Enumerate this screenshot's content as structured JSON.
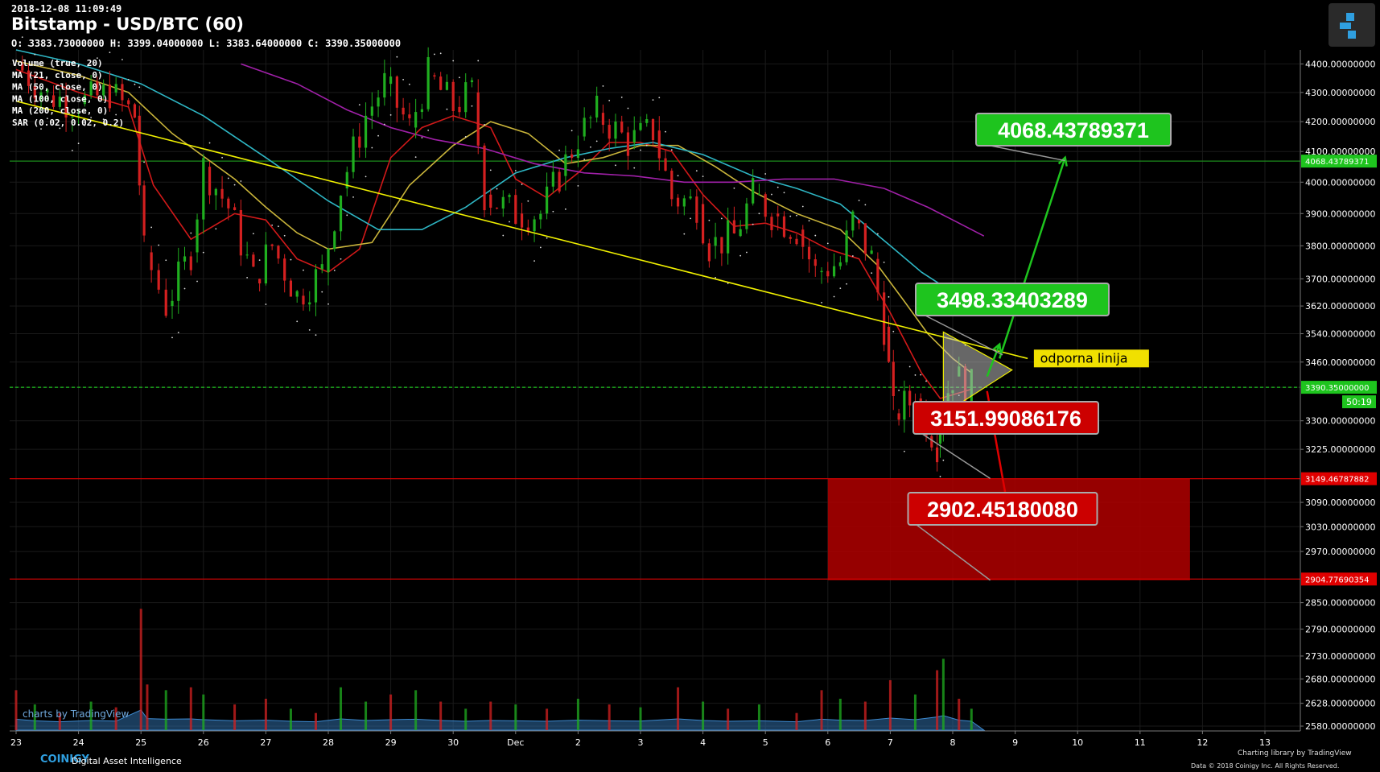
{
  "header": {
    "timestamp": "2018-12-08 11:09:49",
    "title": "Bitstamp - USD/BTC (60)",
    "ohlc": "O: 3383.73000000 H: 3399.04000000 L: 3383.64000000 C: 3390.35000000"
  },
  "legend_items": [
    "Volume (true, 20)",
    "MA (21, close, 0)",
    "MA (50, close, 0)",
    "MA (100, close, 0)",
    "MA (200, close, 0)",
    "SAR (0.02, 0.02, 0.2)"
  ],
  "chart_data": {
    "type": "candlestick",
    "x_tick_labels": [
      "23",
      "24",
      "25",
      "26",
      "27",
      "28",
      "29",
      "30",
      "Dec",
      "2",
      "3",
      "4",
      "5",
      "6",
      "7",
      "8",
      "9",
      "10",
      "11",
      "12",
      "13"
    ],
    "y_tick_labels": [
      "4400.00000000",
      "4300.00000000",
      "4200.00000000",
      "4100.00000000",
      "4000.00000000",
      "3900.00000000",
      "3800.00000000",
      "3700.00000000",
      "3620.00000000",
      "3540.00000000",
      "3460.00000000",
      "3390.35000000",
      "3300.00000000",
      "3225.00000000",
      "3149.46787882",
      "3090.00000000",
      "3030.00000000",
      "2970.00000000",
      "2904.77690354",
      "2850.00000000",
      "2790.00000000",
      "2730.00000000",
      "2680.00000000",
      "2628.00000000",
      "2580.00000000"
    ],
    "ylim": [
      2570,
      4450
    ],
    "yscale": "log",
    "price_series": [
      {
        "x": 23.0,
        "y": 4400
      },
      {
        "x": 23.5,
        "y": 4290
      },
      {
        "x": 24.0,
        "y": 4260
      },
      {
        "x": 24.5,
        "y": 4300
      },
      {
        "x": 24.9,
        "y": 4220
      },
      {
        "x": 25.05,
        "y": 3780
      },
      {
        "x": 25.4,
        "y": 3620
      },
      {
        "x": 25.8,
        "y": 3780
      },
      {
        "x": 26.0,
        "y": 4050
      },
      {
        "x": 26.4,
        "y": 3920
      },
      {
        "x": 26.8,
        "y": 3700
      },
      {
        "x": 27.1,
        "y": 3800
      },
      {
        "x": 27.5,
        "y": 3650
      },
      {
        "x": 27.9,
        "y": 3720
      },
      {
        "x": 28.2,
        "y": 3980
      },
      {
        "x": 28.6,
        "y": 4220
      },
      {
        "x": 28.9,
        "y": 4330
      },
      {
        "x": 29.3,
        "y": 4180
      },
      {
        "x": 29.6,
        "y": 4360
      },
      {
        "x": 30.0,
        "y": 4250
      },
      {
        "x": 30.3,
        "y": 4300
      },
      {
        "x": 30.5,
        "y": 3960
      },
      {
        "x": 31.0,
        "y": 3900
      },
      {
        "x": 31.4,
        "y": 3900
      },
      {
        "x": 31.7,
        "y": 4020
      },
      {
        "x": 32.0,
        "y": 4150
      },
      {
        "x": 32.3,
        "y": 4230
      },
      {
        "x": 32.8,
        "y": 4130
      },
      {
        "x": 33.2,
        "y": 4170
      },
      {
        "x": 33.5,
        "y": 3950
      },
      {
        "x": 33.9,
        "y": 3930
      },
      {
        "x": 34.1,
        "y": 3800
      },
      {
        "x": 34.5,
        "y": 3830
      },
      {
        "x": 34.8,
        "y": 3960
      },
      {
        "x": 35.1,
        "y": 3900
      },
      {
        "x": 35.5,
        "y": 3850
      },
      {
        "x": 35.8,
        "y": 3720
      },
      {
        "x": 36.2,
        "y": 3750
      },
      {
        "x": 36.4,
        "y": 3880
      },
      {
        "x": 36.7,
        "y": 3760
      },
      {
        "x": 36.9,
        "y": 3560
      },
      {
        "x": 37.05,
        "y": 3320
      },
      {
        "x": 37.4,
        "y": 3360
      },
      {
        "x": 37.75,
        "y": 3240
      },
      {
        "x": 37.85,
        "y": 3350
      },
      {
        "x": 38.0,
        "y": 3420
      },
      {
        "x": 38.3,
        "y": 3390
      }
    ],
    "moving_averages": [
      {
        "name": "MA (21, close, 0)",
        "color": "#d11919",
        "points": [
          [
            23,
            4380
          ],
          [
            24,
            4300
          ],
          [
            24.8,
            4250
          ],
          [
            25.2,
            3990
          ],
          [
            25.8,
            3820
          ],
          [
            26.5,
            3900
          ],
          [
            27,
            3880
          ],
          [
            27.5,
            3760
          ],
          [
            28,
            3720
          ],
          [
            28.5,
            3790
          ],
          [
            29,
            4080
          ],
          [
            29.5,
            4180
          ],
          [
            30,
            4220
          ],
          [
            30.6,
            4180
          ],
          [
            31,
            4010
          ],
          [
            31.5,
            3950
          ],
          [
            32,
            4030
          ],
          [
            32.5,
            4130
          ],
          [
            33,
            4130
          ],
          [
            33.5,
            4100
          ],
          [
            34,
            3960
          ],
          [
            34.5,
            3860
          ],
          [
            35,
            3870
          ],
          [
            35.5,
            3840
          ],
          [
            36,
            3790
          ],
          [
            36.5,
            3760
          ],
          [
            37,
            3600
          ],
          [
            37.5,
            3430
          ],
          [
            37.8,
            3360
          ],
          [
            38.3,
            3385
          ]
        ]
      },
      {
        "name": "MA (50, close, 0)",
        "color": "#c9b43a",
        "points": [
          [
            23,
            4410
          ],
          [
            24,
            4360
          ],
          [
            24.8,
            4300
          ],
          [
            25.5,
            4160
          ],
          [
            26.5,
            4010
          ],
          [
            27,
            3920
          ],
          [
            27.5,
            3840
          ],
          [
            28,
            3790
          ],
          [
            28.7,
            3810
          ],
          [
            29.3,
            3990
          ],
          [
            30,
            4120
          ],
          [
            30.6,
            4200
          ],
          [
            31.2,
            4160
          ],
          [
            31.8,
            4060
          ],
          [
            32.4,
            4080
          ],
          [
            33,
            4120
          ],
          [
            33.6,
            4120
          ],
          [
            34.2,
            4050
          ],
          [
            34.8,
            3970
          ],
          [
            35.5,
            3900
          ],
          [
            36.2,
            3850
          ],
          [
            36.8,
            3740
          ],
          [
            37.2,
            3640
          ],
          [
            37.6,
            3540
          ],
          [
            38.0,
            3470
          ],
          [
            38.3,
            3430
          ]
        ]
      },
      {
        "name": "MA (100, close, 0)",
        "color": "#2eb6c4",
        "points": [
          [
            23,
            4450
          ],
          [
            24,
            4400
          ],
          [
            25,
            4330
          ],
          [
            26,
            4220
          ],
          [
            27,
            4080
          ],
          [
            28,
            3940
          ],
          [
            28.8,
            3850
          ],
          [
            29.5,
            3850
          ],
          [
            30.2,
            3920
          ],
          [
            31,
            4030
          ],
          [
            31.8,
            4080
          ],
          [
            32.5,
            4110
          ],
          [
            33.2,
            4130
          ],
          [
            34,
            4090
          ],
          [
            34.8,
            4020
          ],
          [
            35.5,
            3980
          ],
          [
            36.2,
            3930
          ],
          [
            37,
            3800
          ],
          [
            37.5,
            3720
          ],
          [
            38.0,
            3660
          ],
          [
            38.3,
            3620
          ]
        ]
      },
      {
        "name": "MA (200, close, 0)",
        "color": "#a020a8",
        "points": [
          [
            26.6,
            4400
          ],
          [
            27.5,
            4330
          ],
          [
            28.3,
            4240
          ],
          [
            29,
            4180
          ],
          [
            29.7,
            4140
          ],
          [
            30.5,
            4110
          ],
          [
            31.3,
            4060
          ],
          [
            32.1,
            4030
          ],
          [
            32.9,
            4020
          ],
          [
            33.7,
            4000
          ],
          [
            34.5,
            4000
          ],
          [
            35.3,
            4010
          ],
          [
            36.1,
            4010
          ],
          [
            36.9,
            3980
          ],
          [
            37.6,
            3920
          ],
          [
            38.0,
            3880
          ],
          [
            38.5,
            3830
          ]
        ]
      }
    ],
    "volume": {
      "ylim": [
        0,
        1
      ],
      "bars": [
        {
          "x": 23.0,
          "v": 0.28,
          "up": false
        },
        {
          "x": 23.3,
          "v": 0.18,
          "up": true
        },
        {
          "x": 23.7,
          "v": 0.12,
          "up": false
        },
        {
          "x": 24.2,
          "v": 0.2,
          "up": true
        },
        {
          "x": 24.6,
          "v": 0.16,
          "up": false
        },
        {
          "x": 25.0,
          "v": 0.85,
          "up": false
        },
        {
          "x": 25.1,
          "v": 0.32,
          "up": false
        },
        {
          "x": 25.4,
          "v": 0.28,
          "up": true
        },
        {
          "x": 25.8,
          "v": 0.3,
          "up": false
        },
        {
          "x": 26.0,
          "v": 0.25,
          "up": true
        },
        {
          "x": 26.5,
          "v": 0.18,
          "up": false
        },
        {
          "x": 27.0,
          "v": 0.22,
          "up": false
        },
        {
          "x": 27.4,
          "v": 0.15,
          "up": true
        },
        {
          "x": 27.8,
          "v": 0.12,
          "up": false
        },
        {
          "x": 28.2,
          "v": 0.3,
          "up": true
        },
        {
          "x": 28.6,
          "v": 0.2,
          "up": true
        },
        {
          "x": 29.0,
          "v": 0.25,
          "up": false
        },
        {
          "x": 29.4,
          "v": 0.28,
          "up": true
        },
        {
          "x": 29.8,
          "v": 0.2,
          "up": false
        },
        {
          "x": 30.2,
          "v": 0.15,
          "up": true
        },
        {
          "x": 30.6,
          "v": 0.2,
          "up": false
        },
        {
          "x": 31.0,
          "v": 0.18,
          "up": true
        },
        {
          "x": 31.5,
          "v": 0.15,
          "up": false
        },
        {
          "x": 32.0,
          "v": 0.22,
          "up": true
        },
        {
          "x": 32.5,
          "v": 0.18,
          "up": false
        },
        {
          "x": 33.0,
          "v": 0.16,
          "up": true
        },
        {
          "x": 33.6,
          "v": 0.3,
          "up": false
        },
        {
          "x": 34.0,
          "v": 0.2,
          "up": true
        },
        {
          "x": 34.4,
          "v": 0.15,
          "up": false
        },
        {
          "x": 34.9,
          "v": 0.18,
          "up": true
        },
        {
          "x": 35.5,
          "v": 0.12,
          "up": false
        },
        {
          "x": 35.9,
          "v": 0.28,
          "up": false
        },
        {
          "x": 36.2,
          "v": 0.22,
          "up": true
        },
        {
          "x": 36.6,
          "v": 0.2,
          "up": false
        },
        {
          "x": 37.0,
          "v": 0.35,
          "up": false
        },
        {
          "x": 37.4,
          "v": 0.25,
          "up": true
        },
        {
          "x": 37.75,
          "v": 0.42,
          "up": false
        },
        {
          "x": 37.85,
          "v": 0.5,
          "up": true
        },
        {
          "x": 38.1,
          "v": 0.22,
          "up": false
        },
        {
          "x": 38.3,
          "v": 0.15,
          "up": true
        }
      ]
    },
    "horizontal_lines": [
      {
        "y": 4068.43789371,
        "color": "#1c8a1c",
        "style": "solid"
      },
      {
        "y": 3390.35,
        "color": "#1ec41e",
        "style": "dashed"
      },
      {
        "y": 3149.46787882,
        "color": "#e00000",
        "style": "solid"
      },
      {
        "y": 2904.77690354,
        "color": "#e00000",
        "style": "solid"
      }
    ],
    "axis_price_labels": [
      {
        "y": 4068.43789371,
        "text": "4068.43789371",
        "bg": "#1ec41e"
      },
      {
        "y": 3390.35,
        "text": "3390.35000000",
        "bg": "#1ec41e"
      },
      {
        "y": 3149.46787882,
        "text": "3149.46787882",
        "bg": "#e00000"
      },
      {
        "y": 2904.77690354,
        "text": "2904.77690354",
        "bg": "#e00000"
      }
    ],
    "countdown": "50:19",
    "resistance_label": "odporna linija",
    "trend_line": {
      "from": {
        "x": 23.0,
        "y": 4270
      },
      "to": {
        "x": 39.2,
        "y": 3470
      },
      "color": "#f0f000"
    },
    "target_box": {
      "x1": 36.0,
      "x2": 41.8,
      "y1": 2902,
      "y2": 3149,
      "color": "#b00000"
    },
    "price_targets": [
      {
        "value": "4068.43789371",
        "color": "#1ec41e",
        "anchor": {
          "x": 39.8,
          "y": 4070
        }
      },
      {
        "value": "3498.33403289",
        "color": "#1ec41e",
        "anchor": {
          "x": 38.8,
          "y": 3480
        }
      },
      {
        "value": "3151.99086176",
        "color": "#cc0000",
        "anchor": {
          "x": 38.6,
          "y": 3150
        }
      },
      {
        "value": "2902.45180080",
        "color": "#cc0000",
        "anchor": {
          "x": 38.6,
          "y": 2902
        }
      }
    ]
  },
  "footer": {
    "brand": "COINIGY",
    "brand_sub": "Digital Asset Intelligence",
    "credit": "Charting library by  TradingView",
    "data_note": "Data © 2018  Coinigy Inc. All Rights Reserved.",
    "watermark": "charts by TradingView"
  },
  "colors": {
    "up": "#1fae1f",
    "down": "#d42020",
    "background": "#000000",
    "grid": "#1a1a1a"
  }
}
